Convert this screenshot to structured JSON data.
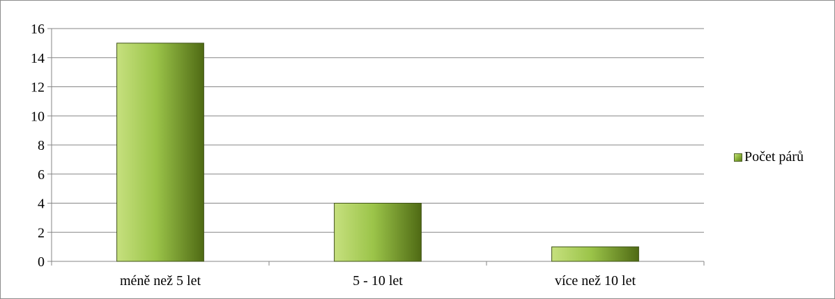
{
  "chart_data": {
    "type": "bar",
    "categories": [
      "méně než 5 let",
      "5 - 10 let",
      "více než 10 let"
    ],
    "series": [
      {
        "name": "Počet párů",
        "values": [
          15,
          4,
          1
        ]
      }
    ],
    "yticks": [
      "0",
      "2",
      "4",
      "6",
      "8",
      "10",
      "12",
      "14",
      "16"
    ],
    "ylim": [
      0,
      16
    ],
    "ytick_step": 2,
    "grid": true,
    "legend": "right",
    "colors": {
      "bar_light": "#c6e07e",
      "bar_mid": "#9bc449",
      "bar_dark": "#4f6a14",
      "bar_border": "#3f5218",
      "grid": "#868686",
      "axis": "#868686"
    }
  }
}
